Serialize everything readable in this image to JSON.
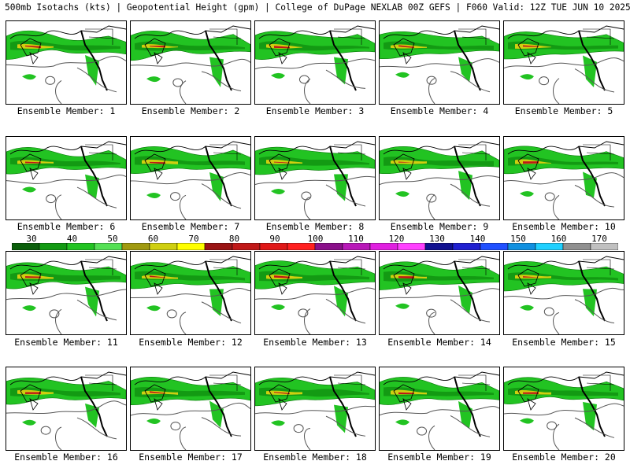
{
  "header": {
    "title": "500mb Isotachs (kts) | Geopotential Height (gpm) | College of DuPage NEXLAB   00Z GEFS | F060 Valid: 12Z TUE JUN 10 2025"
  },
  "panels": [
    {
      "label": "Ensemble Member: 1"
    },
    {
      "label": "Ensemble Member: 2"
    },
    {
      "label": "Ensemble Member: 3"
    },
    {
      "label": "Ensemble Member: 4"
    },
    {
      "label": "Ensemble Member: 5"
    },
    {
      "label": "Ensemble Member: 6"
    },
    {
      "label": "Ensemble Member: 7"
    },
    {
      "label": "Ensemble Member: 8"
    },
    {
      "label": "Ensemble Member: 9"
    },
    {
      "label": "Ensemble Member: 10"
    },
    {
      "label": "Ensemble Member: 11"
    },
    {
      "label": "Ensemble Member: 12"
    },
    {
      "label": "Ensemble Member: 13"
    },
    {
      "label": "Ensemble Member: 14"
    },
    {
      "label": "Ensemble Member: 15"
    },
    {
      "label": "Ensemble Member: 16"
    },
    {
      "label": "Ensemble Member: 17"
    },
    {
      "label": "Ensemble Member: 18"
    },
    {
      "label": "Ensemble Member: 19"
    },
    {
      "label": "Ensemble Member: 20"
    }
  ],
  "legend": {
    "ticks": [
      "30",
      "40",
      "50",
      "60",
      "70",
      "80",
      "90",
      "100",
      "110",
      "120",
      "130",
      "140",
      "150",
      "160",
      "170"
    ],
    "colors": [
      "#0a5e0a",
      "#139a13",
      "#22c322",
      "#55e055",
      "#a09a10",
      "#cfcf10",
      "#ffff00",
      "#9a1414",
      "#c01818",
      "#e01818",
      "#ff2020",
      "#8a0f8a",
      "#b818b8",
      "#e020e0",
      "#ff40ff",
      "#101090",
      "#2020d0",
      "#2050ff",
      "#1090e0",
      "#20d0ff",
      "#909090",
      "#c0c0c0"
    ]
  }
}
